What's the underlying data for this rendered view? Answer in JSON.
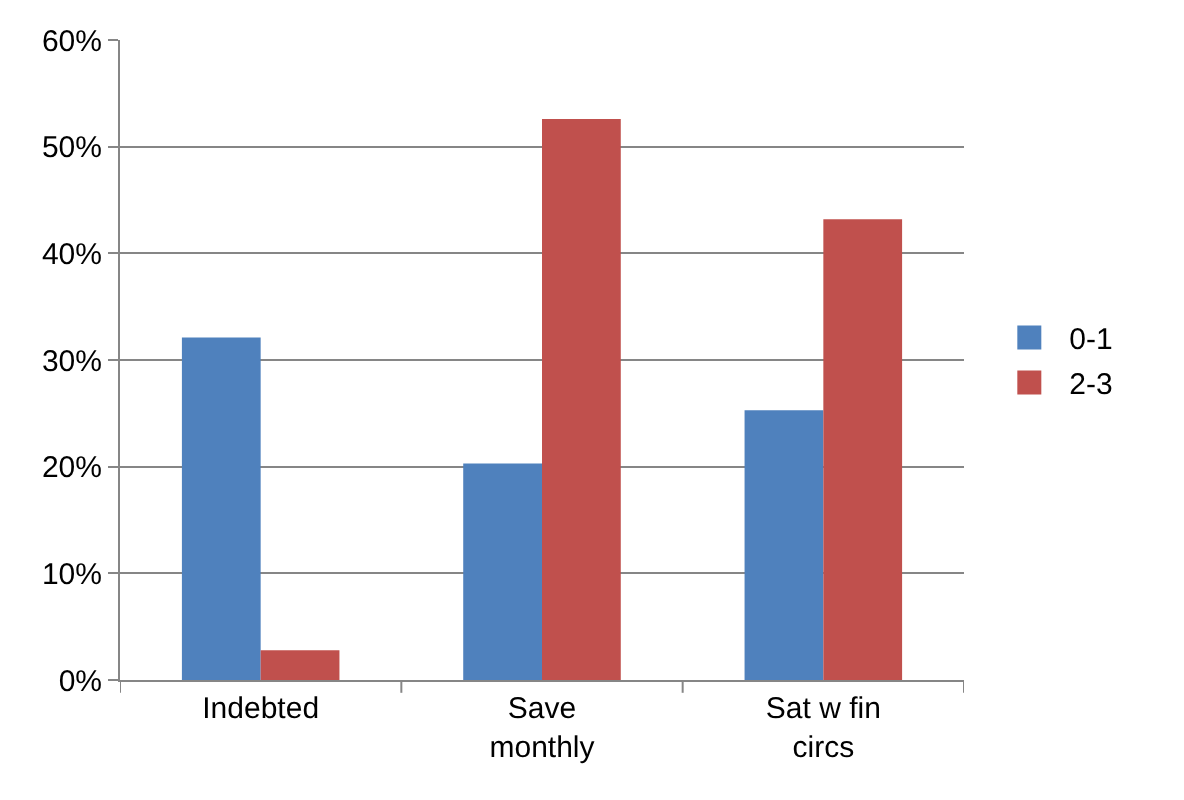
{
  "chart_data": {
    "type": "bar",
    "categories": [
      "Indebted",
      "Save monthly",
      "Sat w fin circs"
    ],
    "series": [
      {
        "name": "0-1",
        "color": "#4f81bd",
        "values": [
          32.1,
          20.3,
          25.3
        ]
      },
      {
        "name": "2-3",
        "color": "#c0504d",
        "values": [
          2.8,
          52.6,
          43.2
        ]
      }
    ],
    "ylim": [
      0,
      60
    ],
    "yticks": [
      {
        "value": 0,
        "label": "0%"
      },
      {
        "value": 10,
        "label": "10%"
      },
      {
        "value": 20,
        "label": "20%"
      },
      {
        "value": 30,
        "label": "30%"
      },
      {
        "value": 40,
        "label": "40%"
      },
      {
        "value": 50,
        "label": "50%"
      },
      {
        "value": 60,
        "label": "60%"
      }
    ],
    "grid": "y",
    "legend": "right"
  }
}
